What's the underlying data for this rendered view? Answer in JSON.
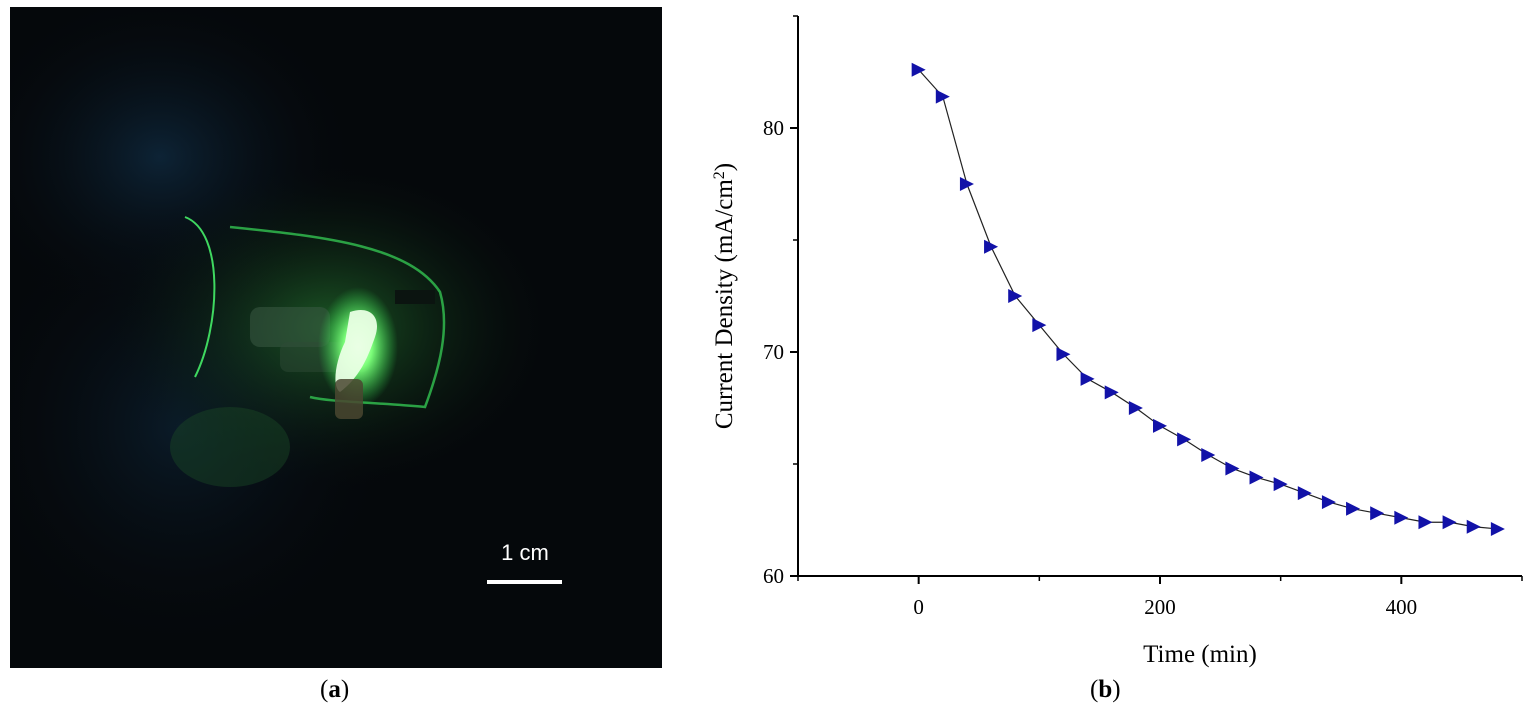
{
  "panels": {
    "a_label": "(a)",
    "b_label": "(b)",
    "a_letter": "a",
    "b_letter": "b"
  },
  "photo": {
    "scale_bar_label": "1 cm",
    "glow_color": "#39ff5a",
    "background_color": "#05080b"
  },
  "chart_data": {
    "type": "line",
    "xlabel": "Time (min)",
    "ylabel": "Current Density (mA/cm",
    "ylabel_sup": "2",
    "ylabel_close": ")",
    "xlim": [
      -100,
      500
    ],
    "ylim": [
      60,
      85
    ],
    "xticks": [
      0,
      200,
      400
    ],
    "yticks": [
      60,
      70,
      80
    ],
    "marker": "right-triangle",
    "marker_color": "#1212a8",
    "line_color": "#222222",
    "series": [
      {
        "x": [
          0,
          20,
          40,
          60,
          80,
          100,
          120,
          140,
          160,
          180,
          200,
          220,
          240,
          260,
          280,
          300,
          320,
          340,
          360,
          380,
          400,
          420,
          440,
          460,
          480
        ],
        "y": [
          82.6,
          81.4,
          77.5,
          74.7,
          72.5,
          71.2,
          69.9,
          68.8,
          68.2,
          67.5,
          66.7,
          66.1,
          65.4,
          64.8,
          64.4,
          64.1,
          63.7,
          63.3,
          63.0,
          62.8,
          62.6,
          62.4,
          62.4,
          62.2,
          62.1
        ]
      }
    ]
  }
}
